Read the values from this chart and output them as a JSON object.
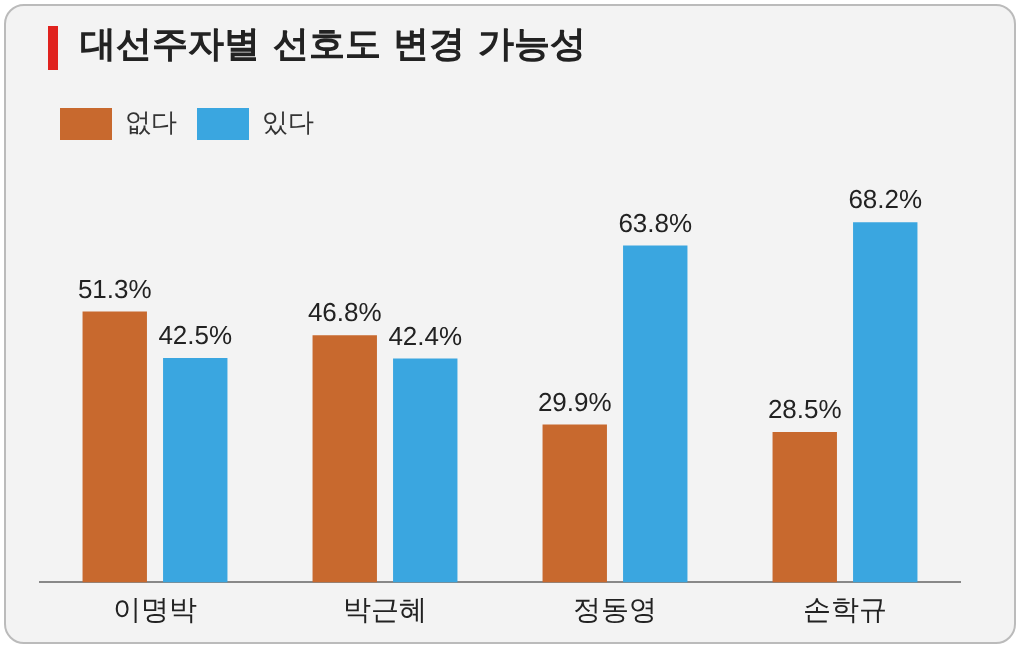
{
  "chart_data": {
    "type": "bar",
    "title": "대선주자별 선호도 변경 가능성",
    "categories": [
      "이명박",
      "박근혜",
      "정동영",
      "손학규"
    ],
    "series": [
      {
        "name": "없다",
        "color": "#c8692e",
        "values": [
          51.3,
          46.8,
          29.9,
          28.5
        ],
        "value_labels": [
          "51.3%",
          "46.8%",
          "29.9%",
          "28.5%"
        ]
      },
      {
        "name": "있다",
        "color": "#3aa6e0",
        "values": [
          42.5,
          42.4,
          63.8,
          68.2
        ],
        "value_labels": [
          "42.5%",
          "42.4%",
          "63.8%",
          "68.2%"
        ]
      }
    ],
    "legend": "top left",
    "grid": false,
    "tick_labels": "x"
  }
}
